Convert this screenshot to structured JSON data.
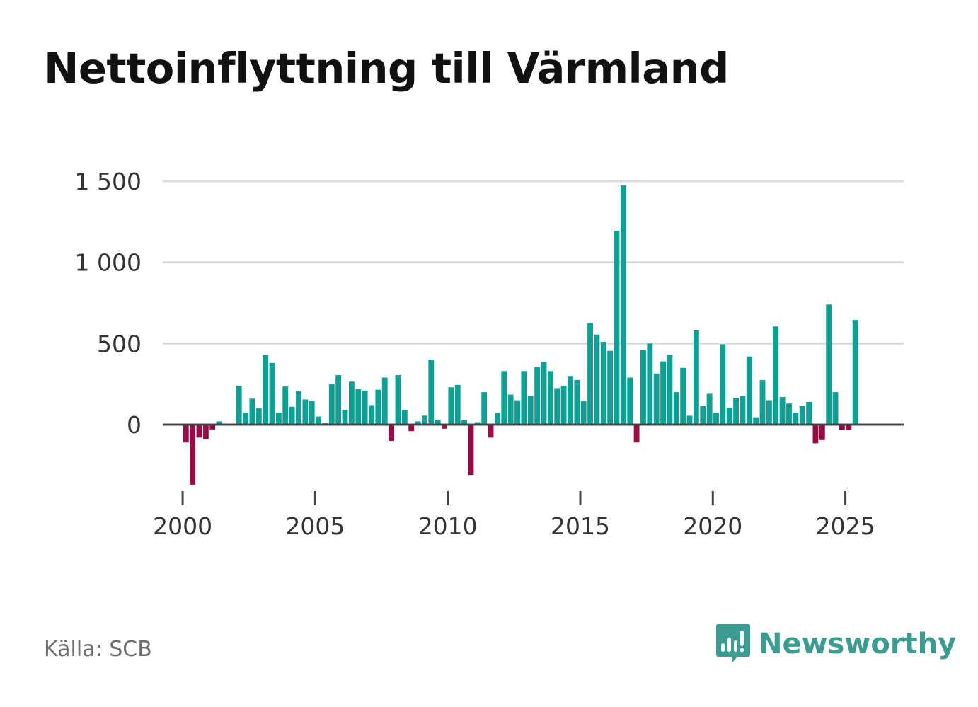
{
  "title": "Nettoinflyttning till Värmland",
  "source": "Källa: SCB",
  "brand": {
    "name": "Newsworthy",
    "icon": "newsworthy-logo-icon",
    "color": "#3c9c91"
  },
  "colors": {
    "positive": "#0fa095",
    "negative": "#990b44",
    "grid": "#dddddd",
    "zero_line": "#444444",
    "text": "#333333"
  },
  "chart_data": {
    "type": "bar",
    "title": "Nettoinflyttning till Värmland",
    "xlabel": "",
    "ylabel": "",
    "x_unit": "quarter",
    "xlim": [
      1999.25,
      2027.2
    ],
    "ylim": [
      -450,
      1500
    ],
    "yticks": [
      0,
      500,
      1000,
      1500
    ],
    "ytick_labels": [
      "0",
      "500",
      "1 000",
      "1 500"
    ],
    "xticks": [
      2000,
      2005,
      2010,
      2015,
      2020,
      2025
    ],
    "xtick_labels": [
      "2000",
      "2005",
      "2010",
      "2015",
      "2020",
      "2025"
    ],
    "grid": true,
    "legend": "none",
    "start_year": 2000,
    "series": [
      {
        "name": "Nettoinflyttning",
        "values": [
          -110,
          -370,
          -80,
          -90,
          -30,
          20,
          0,
          0,
          240,
          70,
          160,
          100,
          430,
          380,
          70,
          235,
          110,
          205,
          155,
          145,
          50,
          10,
          250,
          305,
          90,
          265,
          220,
          210,
          120,
          215,
          290,
          -100,
          305,
          90,
          -40,
          20,
          55,
          400,
          30,
          -25,
          230,
          245,
          30,
          -310,
          15,
          200,
          -80,
          70,
          330,
          185,
          150,
          330,
          175,
          355,
          385,
          330,
          225,
          240,
          300,
          275,
          145,
          625,
          555,
          510,
          455,
          1195,
          1475,
          290,
          -110,
          460,
          500,
          315,
          390,
          430,
          200,
          350,
          55,
          580,
          115,
          190,
          70,
          495,
          105,
          165,
          175,
          420,
          45,
          275,
          150,
          605,
          170,
          130,
          70,
          115,
          140,
          -115,
          -95,
          740,
          200,
          -35,
          -35,
          645
        ]
      }
    ]
  }
}
